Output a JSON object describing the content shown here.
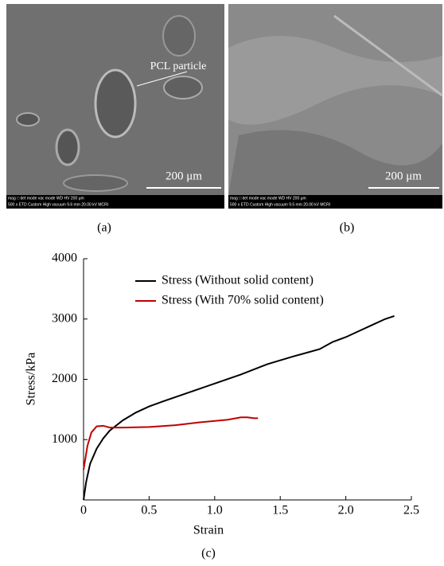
{
  "images": [
    {
      "annotation": "PCL particle",
      "scale": "200 μm",
      "info_top": "mag □   det   mode   vac mode      WD      HV            200 μm",
      "info_bottom": "500 x   ETD  Custom  High vacuum  9.6 mm  20.00 kV        MCRI",
      "caption": "(a)"
    },
    {
      "scale": "200 μm",
      "info_top": "mag □   det   mode   vac mode      WD      HV            200 μm",
      "info_bottom": "500 x   ETD  Custom  High vacuum  9.5 mm  20.00 kV        MCRI",
      "caption": "(b)"
    }
  ],
  "chart_data": {
    "type": "line",
    "caption": "(c)",
    "x_label": "Strain",
    "y_label": "Stress/kPa",
    "xlim": [
      0,
      2.5
    ],
    "xticks": [
      0,
      0.5,
      {
        "value": 1,
        "label": "1.0"
      },
      1.5,
      {
        "value": 2,
        "label": "2.0"
      },
      2.5
    ],
    "ylim": [
      0,
      4000
    ],
    "yticks": [
      1000,
      2000,
      3000,
      4000
    ],
    "series": [
      {
        "name": "Stress (Without solid content)",
        "color": "#000000",
        "x": [
          0,
          0.02,
          0.05,
          0.1,
          0.15,
          0.2,
          0.3,
          0.4,
          0.5,
          0.6,
          0.8,
          1.0,
          1.2,
          1.4,
          1.6,
          1.8,
          1.9,
          2.0,
          2.1,
          2.2,
          2.3,
          2.37
        ],
        "values": [
          0,
          300,
          600,
          850,
          1020,
          1150,
          1320,
          1450,
          1550,
          1630,
          1780,
          1930,
          2080,
          2250,
          2380,
          2500,
          2620,
          2700,
          2800,
          2900,
          3000,
          3050
        ]
      },
      {
        "name": "Stress (With 70% solid content)",
        "color": "#c00000",
        "x": [
          0,
          0.03,
          0.06,
          0.1,
          0.15,
          0.2,
          0.3,
          0.5,
          0.7,
          0.9,
          1.1,
          1.2,
          1.25,
          1.3,
          1.33
        ],
        "values": [
          500,
          900,
          1120,
          1220,
          1230,
          1200,
          1200,
          1210,
          1240,
          1290,
          1330,
          1370,
          1370,
          1355,
          1355
        ]
      }
    ]
  }
}
